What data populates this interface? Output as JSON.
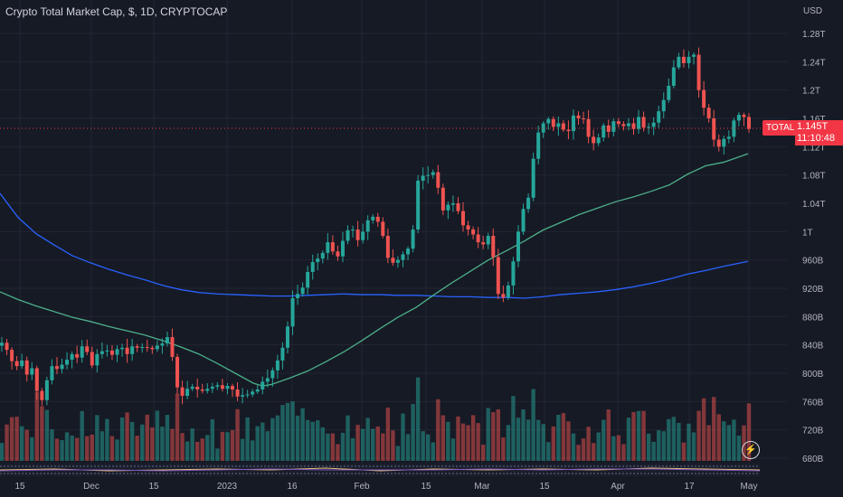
{
  "header": {
    "title": "Crypto Total Market Cap, $, 1D, CRYPTOCAP"
  },
  "price_tag": {
    "symbol": "TOTAL",
    "value": "1.145T",
    "countdown": "11:10:48"
  },
  "icons": {
    "bolt": "lightning-icon"
  },
  "colors": {
    "bg": "#161a25",
    "up": "#26a69a",
    "down": "#ef5350",
    "ma_long": "#2962ff",
    "ma_short": "#4caf8a",
    "grid": "#232632"
  },
  "chart_data": {
    "type": "candlestick",
    "title": "Crypto Total Market Cap, $, 1D, CRYPTOCAP",
    "currency_label": "USD",
    "y_ticks": [
      "1.28T",
      "1.24T",
      "1.2T",
      "1.16T",
      "1.12T",
      "1.08T",
      "1.04T",
      "1T",
      "960B",
      "920B",
      "880B",
      "840B",
      "800B",
      "760B",
      "720B",
      "680B"
    ],
    "y_tick_values": [
      1280,
      1240,
      1200,
      1160,
      1120,
      1080,
      1040,
      1000,
      960,
      920,
      880,
      840,
      800,
      760,
      720,
      680
    ],
    "ylim": [
      660,
      1292
    ],
    "x_ticks": [
      "15",
      "Dec",
      "15",
      "2023",
      "16",
      "Feb",
      "15",
      "Mar",
      "15",
      "Apr",
      "17",
      "May"
    ],
    "x_tick_dates": [
      "2022-11-15",
      "2022-12-01",
      "2022-12-15",
      "2023-01-01",
      "2023-01-16",
      "2023-02-01",
      "2023-02-15",
      "2023-03-01",
      "2023-03-15",
      "2023-04-01",
      "2023-04-17",
      "2023-05-01"
    ],
    "last_value": 1145,
    "closes": [
      843,
      833,
      817,
      810,
      818,
      798,
      807,
      775,
      762,
      790,
      810,
      806,
      812,
      819,
      827,
      822,
      838,
      830,
      811,
      827,
      831,
      832,
      826,
      834,
      836,
      827,
      838,
      836,
      837,
      836,
      834,
      839,
      842,
      851,
      823,
      780,
      768,
      778,
      781,
      777,
      775,
      778,
      781,
      783,
      778,
      782,
      777,
      767,
      769,
      770,
      774,
      777,
      788,
      793,
      804,
      818,
      836,
      866,
      906,
      912,
      921,
      943,
      957,
      962,
      970,
      985,
      972,
      965,
      987,
      1002,
      1003,
      988,
      1000,
      1016,
      1021,
      1014,
      994,
      963,
      956,
      960,
      968,
      976,
      1003,
      1072,
      1079,
      1080,
      1084,
      1062,
      1030,
      1038,
      1040,
      1029,
      1009,
      1003,
      996,
      985,
      982,
      994,
      964,
      912,
      907,
      924,
      958,
      1000,
      1032,
      1048,
      1103,
      1140,
      1153,
      1159,
      1148,
      1153,
      1144,
      1142,
      1164,
      1160,
      1159,
      1134,
      1125,
      1133,
      1150,
      1141,
      1156,
      1152,
      1149,
      1153,
      1145,
      1162,
      1147,
      1148,
      1154,
      1170,
      1186,
      1206,
      1232,
      1247,
      1238,
      1247,
      1250,
      1200,
      1175,
      1160,
      1130,
      1120,
      1131,
      1134,
      1157,
      1165,
      1162,
      1145
    ],
    "series": [
      {
        "name": "",
        "points": [
          [
            0,
            1054
          ],
          [
            20,
            1020
          ],
          [
            40,
            997
          ],
          [
            60,
            981
          ],
          [
            80,
            966
          ],
          [
            100,
            956
          ],
          [
            120,
            947
          ],
          [
            140,
            939
          ],
          [
            160,
            932
          ],
          [
            180,
            924
          ],
          [
            200,
            918
          ],
          [
            220,
            914
          ],
          [
            240,
            912
          ],
          [
            260,
            911
          ],
          [
            280,
            910
          ],
          [
            300,
            909
          ],
          [
            320,
            909
          ],
          [
            340,
            910
          ],
          [
            360,
            911
          ],
          [
            380,
            912
          ],
          [
            400,
            911
          ],
          [
            420,
            911
          ],
          [
            440,
            910
          ],
          [
            460,
            910
          ],
          [
            480,
            909
          ],
          [
            500,
            908
          ],
          [
            520,
            908
          ],
          [
            540,
            907
          ],
          [
            560,
            907
          ],
          [
            580,
            906
          ],
          [
            600,
            908
          ],
          [
            620,
            911
          ],
          [
            640,
            913
          ],
          [
            660,
            915
          ],
          [
            680,
            918
          ],
          [
            700,
            922
          ],
          [
            720,
            927
          ],
          [
            740,
            933
          ],
          [
            760,
            940
          ],
          [
            780,
            945
          ],
          [
            800,
            951
          ],
          [
            827,
            958
          ]
        ]
      },
      {
        "name": "",
        "points": [
          [
            0,
            915
          ],
          [
            20,
            904
          ],
          [
            40,
            895
          ],
          [
            60,
            887
          ],
          [
            80,
            879
          ],
          [
            100,
            873
          ],
          [
            120,
            866
          ],
          [
            140,
            860
          ],
          [
            160,
            854
          ],
          [
            180,
            846
          ],
          [
            200,
            837
          ],
          [
            220,
            827
          ],
          [
            240,
            814
          ],
          [
            260,
            800
          ],
          [
            280,
            786
          ],
          [
            290,
            782
          ],
          [
            300,
            784
          ],
          [
            320,
            793
          ],
          [
            340,
            803
          ],
          [
            360,
            816
          ],
          [
            380,
            830
          ],
          [
            400,
            846
          ],
          [
            420,
            863
          ],
          [
            440,
            879
          ],
          [
            460,
            893
          ],
          [
            480,
            911
          ],
          [
            500,
            928
          ],
          [
            520,
            944
          ],
          [
            540,
            960
          ],
          [
            560,
            973
          ],
          [
            580,
            987
          ],
          [
            600,
            1002
          ],
          [
            620,
            1013
          ],
          [
            640,
            1024
          ],
          [
            660,
            1033
          ],
          [
            680,
            1042
          ],
          [
            700,
            1049
          ],
          [
            720,
            1057
          ],
          [
            740,
            1066
          ],
          [
            760,
            1081
          ],
          [
            780,
            1093
          ],
          [
            800,
            1098
          ],
          [
            827,
            1110
          ]
        ]
      }
    ]
  }
}
